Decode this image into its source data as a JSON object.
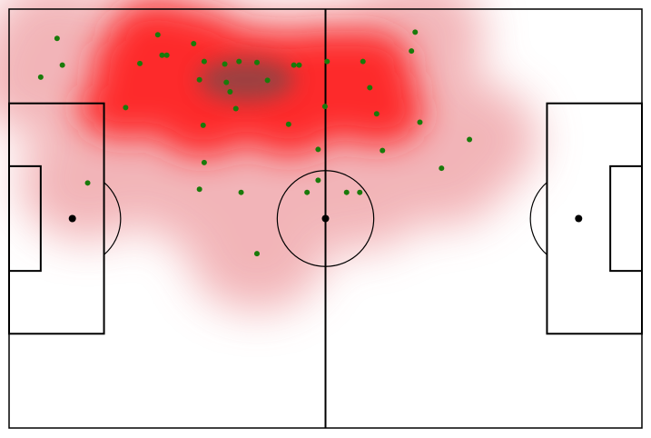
{
  "chart_data": {
    "type": "scatter",
    "pitch": {
      "length": 120,
      "width": 80
    },
    "colors": {
      "line": "#000000",
      "point": "#1a7a0a",
      "density_light": "#f0a8ac",
      "density_mid": "#ff1a1a",
      "density_dark": "#7a4a4a"
    },
    "points": [
      [
        9.1,
        74.4
      ],
      [
        10.1,
        69.3
      ],
      [
        6.0,
        67.0
      ],
      [
        14.9,
        46.8
      ],
      [
        22.1,
        61.2
      ],
      [
        24.8,
        69.6
      ],
      [
        28.2,
        75.1
      ],
      [
        29.0,
        71.2
      ],
      [
        29.9,
        71.2
      ],
      [
        35.0,
        73.4
      ],
      [
        36.1,
        66.5
      ],
      [
        36.8,
        57.8
      ],
      [
        37.0,
        70.0
      ],
      [
        37.0,
        50.7
      ],
      [
        36.1,
        45.6
      ],
      [
        40.9,
        69.5
      ],
      [
        41.2,
        66.0
      ],
      [
        41.9,
        64.2
      ],
      [
        43.0,
        61.0
      ],
      [
        43.6,
        70.0
      ],
      [
        44.0,
        45.0
      ],
      [
        47.0,
        69.8
      ],
      [
        49.0,
        66.4
      ],
      [
        53.0,
        58.0
      ],
      [
        54.0,
        69.3
      ],
      [
        55.0,
        69.3
      ],
      [
        56.5,
        45.0
      ],
      [
        58.6,
        53.2
      ],
      [
        58.6,
        47.3
      ],
      [
        59.9,
        61.4
      ],
      [
        60.3,
        70.0
      ],
      [
        64.0,
        45.0
      ],
      [
        66.5,
        45.0
      ],
      [
        67.1,
        70.0
      ],
      [
        68.4,
        65.0
      ],
      [
        69.7,
        60.0
      ],
      [
        70.8,
        53.0
      ],
      [
        76.3,
        72.0
      ],
      [
        77.0,
        75.6
      ],
      [
        77.9,
        58.4
      ],
      [
        82.0,
        49.6
      ],
      [
        87.3,
        55.1
      ],
      [
        47.0,
        33.3
      ]
    ]
  }
}
